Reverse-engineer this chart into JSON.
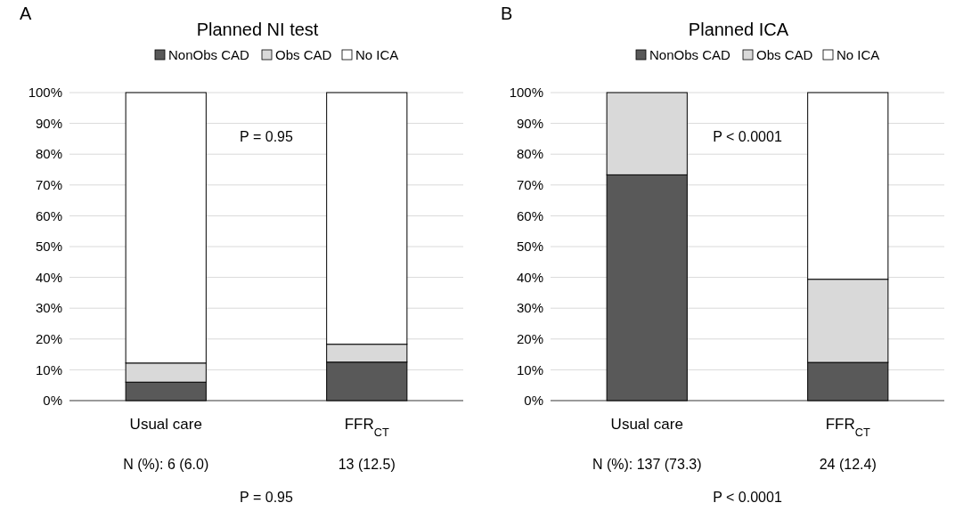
{
  "chart_data": [
    {
      "type": "bar",
      "title": "Planned NI test",
      "stacked": true,
      "legend": "top",
      "grid": "y",
      "categories": [
        "Usual care",
        "FFR$_{CT}$"
      ],
      "series": [
        {
          "name": "NonObs CAD",
          "color": "#595959",
          "values": [
            6.0,
            12.5
          ]
        },
        {
          "name": "Obs CAD",
          "color": "#d9d9d9",
          "values": [
            6.2,
            5.8
          ]
        },
        {
          "name": "No ICA",
          "color": "#ffffff",
          "values": [
            87.8,
            81.7
          ]
        }
      ],
      "ylim": [
        0,
        100
      ],
      "yticks": [
        {
          "value": 0,
          "label": "0%"
        },
        {
          "value": 10,
          "label": "10%"
        },
        {
          "value": 20,
          "label": "20%"
        },
        {
          "value": 30,
          "label": "30%"
        },
        {
          "value": 40,
          "label": "40%"
        },
        {
          "value": 50,
          "label": "50%"
        },
        {
          "value": 60,
          "label": "60%"
        },
        {
          "value": 70,
          "label": "70%"
        },
        {
          "value": 80,
          "label": "80%"
        },
        {
          "value": 90,
          "label": "90%"
        },
        {
          "value": 100,
          "label": "100%"
        }
      ],
      "annotations": [
        "A",
        "P = 0.95",
        "N (%): 6 (6.0)",
        "13 (12.5)",
        "P = 0.95"
      ]
    },
    {
      "type": "bar",
      "title": "Planned ICA",
      "stacked": true,
      "legend": "top",
      "grid": "y",
      "categories": [
        "Usual care",
        "FFR$_{CT}$"
      ],
      "series": [
        {
          "name": "NonObs CAD",
          "color": "#595959",
          "values": [
            73.3,
            12.4
          ]
        },
        {
          "name": "Obs CAD",
          "color": "#d9d9d9",
          "values": [
            26.7,
            27.0
          ]
        },
        {
          "name": "No ICA",
          "color": "#ffffff",
          "values": [
            0,
            60.6
          ]
        }
      ],
      "ylim": [
        0,
        100
      ],
      "yticks": [
        {
          "value": 0,
          "label": "0%"
        },
        {
          "value": 10,
          "label": "10%"
        },
        {
          "value": 20,
          "label": "20%"
        },
        {
          "value": 30,
          "label": "30%"
        },
        {
          "value": 40,
          "label": "40%"
        },
        {
          "value": 50,
          "label": "50%"
        },
        {
          "value": 60,
          "label": "60%"
        },
        {
          "value": 70,
          "label": "70%"
        },
        {
          "value": 80,
          "label": "80%"
        },
        {
          "value": 90,
          "label": "90%"
        },
        {
          "value": 100,
          "label": "100%"
        }
      ],
      "annotations": [
        "B",
        "P < 0.0001",
        "N (%): 137 (73.3)",
        "24 (12.4)",
        "P < 0.0001"
      ]
    }
  ]
}
